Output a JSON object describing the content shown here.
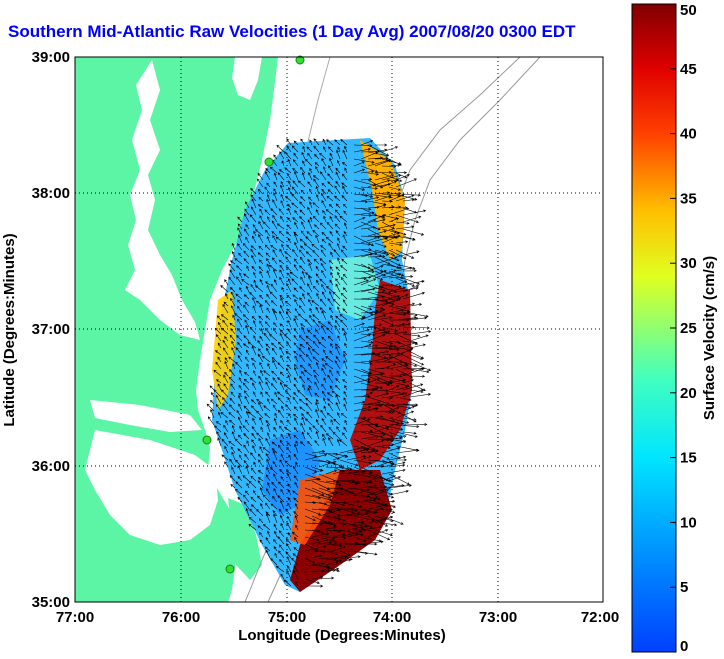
{
  "title": "Southern Mid-Atlantic Raw Velocities (1 Day Avg) 2007/08/20 0300 EDT",
  "xlabel": "Longitude (Degrees:Minutes)",
  "ylabel": "Latitude (Degrees:Minutes)",
  "x_ticks": [
    "77:00",
    "76:00",
    "75:00",
    "74:00",
    "73:00",
    "72:00"
  ],
  "y_ticks": [
    "39:00",
    "38:00",
    "37:00",
    "36:00",
    "35:00"
  ],
  "colorbar": {
    "label": "Surface Velocity (cm/s)",
    "ticks": [
      "0",
      "5",
      "10",
      "15",
      "20",
      "25",
      "30",
      "35",
      "40",
      "45",
      "50"
    ],
    "range": [
      0,
      50
    ]
  },
  "colors": {
    "land": "#5cf5a6",
    "title": "#0000ff",
    "stations": "#33dd33"
  },
  "icons": {
    "stations": "station-dot-icon",
    "vectors": "current-arrow-icon"
  }
}
